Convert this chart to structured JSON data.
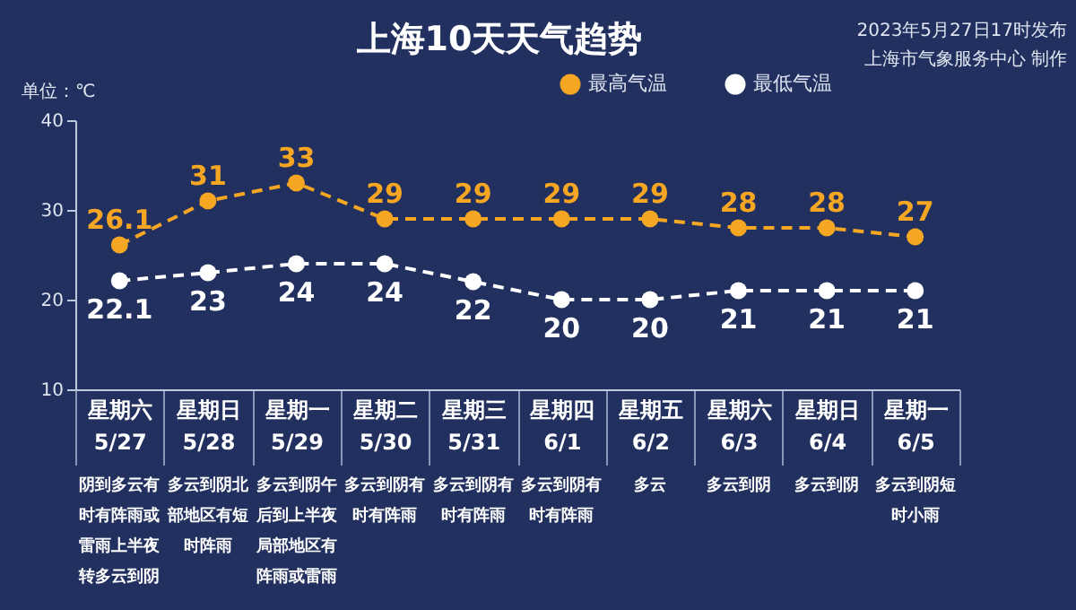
{
  "chart_data": {
    "type": "line",
    "title": "上海10天天气趋势",
    "ylabel": "单位：℃",
    "categories": [
      "星期六\n5/27",
      "星期日\n5/28",
      "星期一\n5/29",
      "星期二\n5/30",
      "星期三\n5/31",
      "星期四\n6/1",
      "星期五\n6/2",
      "星期六\n6/3",
      "星期日\n6/4",
      "星期一\n6/5"
    ],
    "series": [
      {
        "name": "最高气温",
        "color": "#f5a623",
        "values": [
          26.1,
          31,
          33,
          29,
          29,
          29,
          29,
          28,
          28,
          27
        ]
      },
      {
        "name": "最低气温",
        "color": "#ffffff",
        "values": [
          22.1,
          23,
          24,
          24,
          22,
          20,
          20,
          21,
          21,
          21
        ]
      }
    ],
    "ylim": [
      10,
      40
    ],
    "yticks": [
      10,
      20,
      30,
      40
    ],
    "grid": false,
    "legend": "top",
    "marker": "circle",
    "line_style": "dashed",
    "data_labels": true,
    "annotations": [
      "2023年5月27日17时发布",
      "上海市气象服务中心 制作",
      "阴到多云有时有阵雨或雷雨上半夜转多云到阴",
      "多云到阴北部地区有短时阵雨",
      "多云到阴午后到上半夜局部地区有阵雨或雷雨",
      "多云到阴有时有阵雨",
      "多云到阴有时有阵雨",
      "多云到阴有时有阵雨",
      "多云",
      "多云到阴",
      "多云到阴",
      "多云到阴短时小雨"
    ]
  }
}
